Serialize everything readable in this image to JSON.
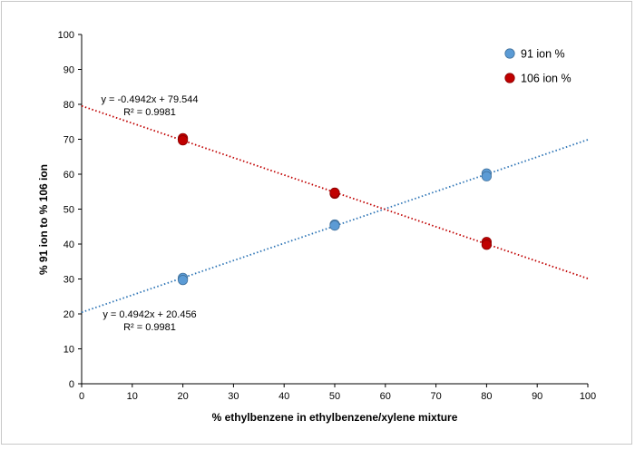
{
  "chart_data": {
    "type": "scatter",
    "xlabel": "% ethylbenzene in ethylbenzene/xylene mixture",
    "ylabel": "% 91 ion to % 106 ion",
    "xlim": [
      0,
      100
    ],
    "ylim": [
      0,
      100
    ],
    "xticks": [
      "0",
      "10",
      "20",
      "30",
      "40",
      "50",
      "60",
      "70",
      "80",
      "90",
      "100"
    ],
    "yticks": [
      "0",
      "10",
      "20",
      "30",
      "40",
      "50",
      "60",
      "70",
      "80",
      "90",
      "100"
    ],
    "grid": false,
    "legend_position": "top-right",
    "series": [
      {
        "name": "91 ion %",
        "color": "#5b9bd5",
        "points": [
          {
            "x": 20,
            "y": 30.3
          },
          {
            "x": 20,
            "y": 29.7
          },
          {
            "x": 50,
            "y": 45.6
          },
          {
            "x": 50,
            "y": 45.3
          },
          {
            "x": 80,
            "y": 60.2
          },
          {
            "x": 80,
            "y": 59.4
          }
        ],
        "trendline": {
          "slope": 0.4942,
          "intercept": 20.456,
          "color": "#2e75b6",
          "equation": "y = 0.4942x + 20.456",
          "r2": "R² = 0.9981"
        }
      },
      {
        "name": "106 ion %",
        "color": "#c00000",
        "points": [
          {
            "x": 20,
            "y": 70.3
          },
          {
            "x": 20,
            "y": 69.7
          },
          {
            "x": 50,
            "y": 54.4
          },
          {
            "x": 50,
            "y": 54.7
          },
          {
            "x": 80,
            "y": 40.6
          },
          {
            "x": 80,
            "y": 39.8
          }
        ],
        "trendline": {
          "slope": -0.4942,
          "intercept": 79.544,
          "color": "#c00000",
          "equation": "y = -0.4942x + 79.544",
          "r2": "R² = 0.9981"
        }
      }
    ]
  }
}
